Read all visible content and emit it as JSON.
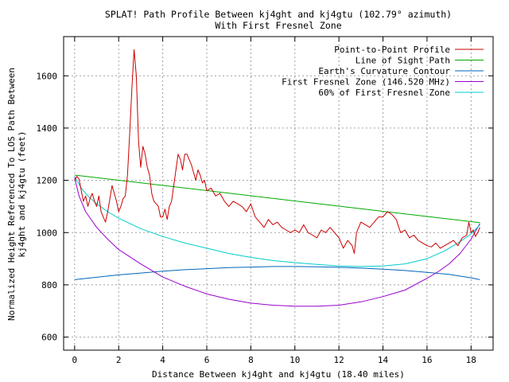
{
  "chart_data": {
    "type": "line",
    "title": "SPLAT! Path Profile Between kj4ght and kj4gtu (102.79° azimuth)",
    "subtitle": "With First Fresnel Zone",
    "xlabel": "Distance Between kj4ght and kj4gtu (18.40 miles)",
    "ylabel_line1": "Normalized Height Referenced To LOS Path Between",
    "ylabel_line2": "kj4ght and kj4gtu (feet)",
    "xlim": [
      -0.5,
      19.0
    ],
    "ylim": [
      550,
      1750
    ],
    "xticks": [
      0,
      2,
      4,
      6,
      8,
      10,
      12,
      14,
      16,
      18
    ],
    "yticks": [
      600,
      800,
      1000,
      1200,
      1400,
      1600
    ],
    "grid": true,
    "legend_position": "top-right",
    "series": [
      {
        "name": "Point-to-Point Profile",
        "color": "#cc0000",
        "x": [
          0,
          0.1,
          0.2,
          0.3,
          0.4,
          0.5,
          0.6,
          0.7,
          0.8,
          0.9,
          1.0,
          1.1,
          1.2,
          1.3,
          1.4,
          1.5,
          1.6,
          1.7,
          1.8,
          1.9,
          2.0,
          2.1,
          2.2,
          2.3,
          2.4,
          2.5,
          2.6,
          2.7,
          2.8,
          2.9,
          3.0,
          3.1,
          3.2,
          3.3,
          3.4,
          3.5,
          3.6,
          3.7,
          3.8,
          3.9,
          4.0,
          4.1,
          4.2,
          4.3,
          4.4,
          4.5,
          4.6,
          4.7,
          4.8,
          4.9,
          5.0,
          5.1,
          5.2,
          5.3,
          5.4,
          5.5,
          5.6,
          5.7,
          5.8,
          5.9,
          6.0,
          6.2,
          6.4,
          6.6,
          6.8,
          7.0,
          7.2,
          7.4,
          7.6,
          7.8,
          8.0,
          8.2,
          8.4,
          8.6,
          8.8,
          9.0,
          9.2,
          9.4,
          9.6,
          9.8,
          10.0,
          10.2,
          10.4,
          10.6,
          10.8,
          11.0,
          11.2,
          11.4,
          11.6,
          11.8,
          12.0,
          12.2,
          12.4,
          12.6,
          12.7,
          12.8,
          13.0,
          13.2,
          13.4,
          13.6,
          13.8,
          14.0,
          14.2,
          14.4,
          14.6,
          14.8,
          15.0,
          15.2,
          15.4,
          15.6,
          15.8,
          16.0,
          16.2,
          16.4,
          16.6,
          16.8,
          17.0,
          17.2,
          17.4,
          17.6,
          17.8,
          17.9,
          18.0,
          18.1,
          18.2,
          18.3,
          18.4
        ],
        "y": [
          1200,
          1215,
          1205,
          1160,
          1120,
          1140,
          1100,
          1130,
          1150,
          1120,
          1100,
          1140,
          1080,
          1060,
          1040,
          1080,
          1130,
          1180,
          1150,
          1120,
          1080,
          1100,
          1130,
          1140,
          1220,
          1380,
          1550,
          1700,
          1600,
          1350,
          1250,
          1330,
          1300,
          1250,
          1220,
          1150,
          1120,
          1110,
          1100,
          1060,
          1060,
          1090,
          1050,
          1100,
          1120,
          1180,
          1240,
          1300,
          1280,
          1240,
          1300,
          1300,
          1280,
          1260,
          1230,
          1200,
          1240,
          1220,
          1190,
          1200,
          1160,
          1170,
          1140,
          1150,
          1120,
          1100,
          1120,
          1110,
          1100,
          1080,
          1110,
          1060,
          1040,
          1020,
          1050,
          1030,
          1040,
          1020,
          1010,
          1000,
          1010,
          1000,
          1030,
          1000,
          990,
          980,
          1010,
          1000,
          1020,
          1000,
          980,
          940,
          970,
          950,
          920,
          1000,
          1040,
          1030,
          1020,
          1040,
          1060,
          1060,
          1080,
          1070,
          1050,
          1000,
          1010,
          980,
          990,
          970,
          960,
          950,
          945,
          960,
          940,
          950,
          960,
          970,
          950,
          980,
          990,
          1040,
          1000,
          1010,
          985,
          1000,
          1020
        ]
      },
      {
        "name": "Line of Sight Path",
        "color": "#00aa00",
        "x": [
          0,
          18.4
        ],
        "y": [
          1220,
          1038
        ]
      },
      {
        "name": "Earth's Curvature Contour",
        "color": "#0066bb",
        "x": [
          0,
          1,
          2,
          3,
          4,
          5,
          6,
          7,
          8,
          9,
          9.2,
          10,
          11,
          12,
          13,
          14,
          15,
          16,
          17,
          18,
          18.4
        ],
        "y": [
          820,
          829,
          838,
          845,
          852,
          858,
          862,
          866,
          868,
          870,
          870,
          870,
          869,
          867,
          864,
          860,
          855,
          848,
          840,
          827,
          820
        ]
      },
      {
        "name": "First Fresnel Zone (146.520 MHz)",
        "color": "#9900cc",
        "x": [
          0,
          0.2,
          0.5,
          1,
          1.5,
          2,
          3,
          4,
          5,
          6,
          7,
          8,
          9,
          10,
          11,
          12,
          13,
          14,
          15,
          16,
          16.5,
          17,
          17.5,
          18,
          18.2,
          18.4
        ],
        "y": [
          1210,
          1140,
          1080,
          1020,
          975,
          935,
          880,
          830,
          795,
          765,
          745,
          730,
          722,
          718,
          718,
          722,
          735,
          755,
          780,
          825,
          850,
          880,
          920,
          975,
          1005,
          1035
        ]
      },
      {
        "name": "60% of First Fresnel Zone",
        "color": "#00cccc",
        "x": [
          0,
          0.3,
          0.6,
          1,
          1.5,
          2,
          3,
          4,
          5,
          6,
          7,
          8,
          9,
          10,
          11,
          12,
          13,
          14,
          15,
          16,
          16.8,
          17.5,
          18,
          18.4
        ],
        "y": [
          1215,
          1170,
          1140,
          1110,
          1080,
          1055,
          1015,
          985,
          960,
          940,
          920,
          905,
          893,
          885,
          878,
          872,
          870,
          872,
          880,
          900,
          930,
          965,
          995,
          1030
        ]
      }
    ]
  }
}
